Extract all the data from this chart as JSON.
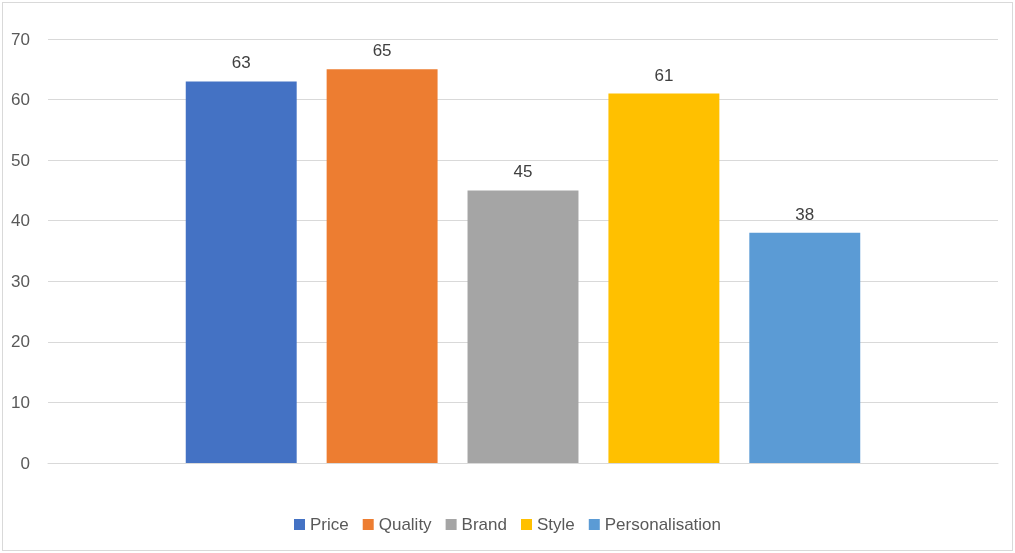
{
  "chart_data": {
    "type": "bar",
    "categories": [
      null
    ],
    "series": [
      {
        "name": "Price",
        "color": "#4472c4",
        "values": [
          63
        ]
      },
      {
        "name": "Quality",
        "color": "#ed7d31",
        "values": [
          65
        ]
      },
      {
        "name": "Brand",
        "color": "#a5a5a5",
        "values": [
          45
        ]
      },
      {
        "name": "Style",
        "color": "#ffc000",
        "values": [
          61
        ]
      },
      {
        "name": "Personalisation",
        "color": "#5b9bd5",
        "values": [
          38
        ]
      }
    ],
    "ylim": [
      0,
      70
    ],
    "yticks": [
      0,
      10,
      20,
      30,
      40,
      50,
      60,
      70
    ],
    "grid": "y",
    "legend": "bottom",
    "data_labels": true
  }
}
